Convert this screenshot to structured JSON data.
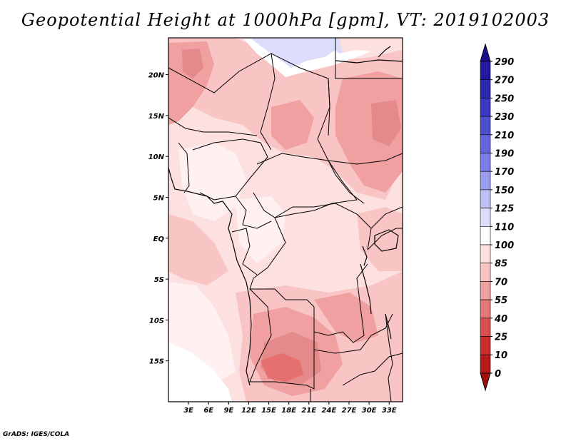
{
  "title": "Geopotential Height at 1000hPa [gpm], VT: 2019102003",
  "credit": "GrADS: IGES/COLA",
  "map": {
    "lon_range": [
      0,
      35
    ],
    "lat_range": [
      -20,
      24.5
    ],
    "lon_ticks": [
      "3E",
      "6E",
      "9E",
      "12E",
      "15E",
      "18E",
      "21E",
      "24E",
      "27E",
      "30E",
      "33E"
    ],
    "lat_ticks": [
      "20N",
      "15N",
      "10N",
      "5N",
      "EQ",
      "5S",
      "10S",
      "15S"
    ]
  },
  "colorbar": {
    "labels": [
      "290",
      "270",
      "250",
      "230",
      "210",
      "190",
      "170",
      "150",
      "125",
      "110",
      "100",
      "85",
      "70",
      "55",
      "40",
      "25",
      "10",
      "0"
    ],
    "colors": [
      "#1a0f8c",
      "#24199e",
      "#2e27b0",
      "#3b39c2",
      "#4d4fcf",
      "#6464dc",
      "#7b7ee8",
      "#9a9cf0",
      "#bfc0f7",
      "#dcdcfc",
      "#ffffff",
      "#fde0e0",
      "#f9c4c4",
      "#f0a0a0",
      "#e57878",
      "#d94e4e",
      "#cc2e2e",
      "#b81a1a",
      "#a00e0e"
    ],
    "top_color": "#1a0f8c",
    "bottom_color": "#a00e0e"
  }
}
